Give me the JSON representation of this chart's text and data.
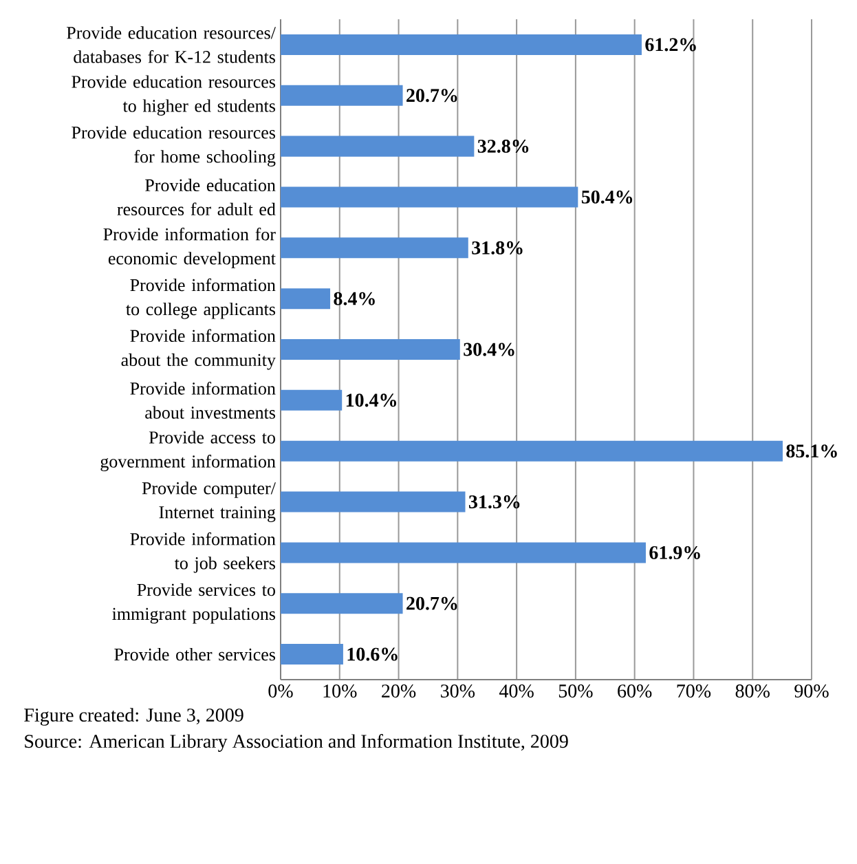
{
  "chart_data": {
    "type": "bar",
    "orientation": "horizontal",
    "color": "#558ed5",
    "grid": "x",
    "categories": [
      "Provide education resources/ databases for K-12 students",
      "Provide education resources to higher ed students",
      "Provide education resources for home schooling",
      "Provide education resources for adult ed",
      "Provide information for economic development",
      "Provide information to college applicants",
      "Provide information about the community",
      "Provide information about investments",
      "Provide access to government information",
      "Provide computer/ Internet training",
      "Provide information to job seekers",
      "Provide services to immigrant populations",
      "Provide other services"
    ],
    "values": [
      61.2,
      20.7,
      32.8,
      50.4,
      31.8,
      8.4,
      30.4,
      10.4,
      85.1,
      31.3,
      61.9,
      20.7,
      10.6
    ],
    "value_labels": [
      "61.2%",
      "20.7%",
      "32.8%",
      "50.4%",
      "31.8%",
      "8.4%",
      "30.4%",
      "10.4%",
      "85.1%",
      "31.3%",
      "61.9%",
      "20.7%",
      "10.6%"
    ],
    "xlim": [
      0,
      90
    ],
    "xticks": [
      {
        "value": 0,
        "label": "0%"
      },
      {
        "value": 10,
        "label": "10%"
      },
      {
        "value": 20,
        "label": "20%"
      },
      {
        "value": 30,
        "label": "30%"
      },
      {
        "value": 40,
        "label": "40%"
      },
      {
        "value": 50,
        "label": "50%"
      },
      {
        "value": 60,
        "label": "60%"
      },
      {
        "value": 70,
        "label": "70%"
      },
      {
        "value": 80,
        "label": "80%"
      },
      {
        "value": 90,
        "label": "90%"
      }
    ],
    "annotations": [
      "Figure created: June 3, 2009",
      "Source: American Library Association and Information Institute, 2009"
    ]
  }
}
